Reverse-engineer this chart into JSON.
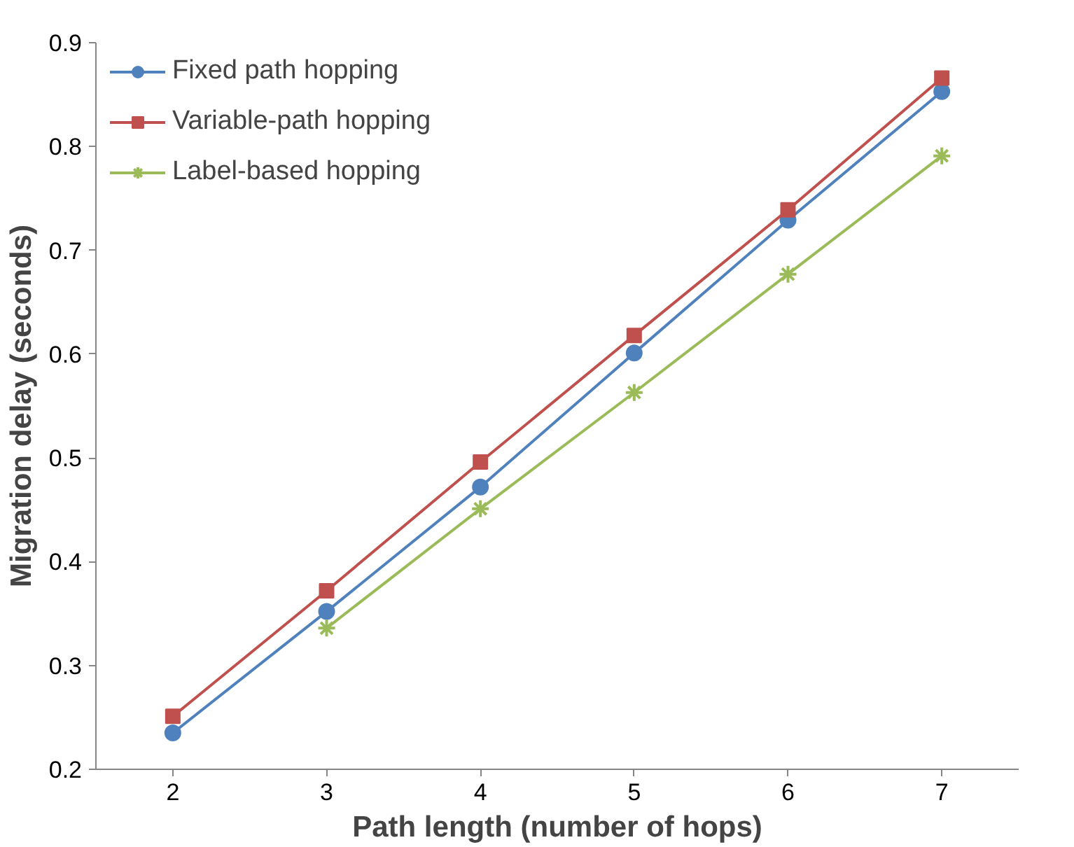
{
  "chart_data": {
    "type": "line",
    "xlabel": "Path length (number of hops)",
    "ylabel": "Migration delay (seconds)",
    "x": [
      2,
      3,
      4,
      5,
      6,
      7
    ],
    "xlim": [
      1.5,
      7.5
    ],
    "xticks": [
      2,
      3,
      4,
      5,
      6,
      7
    ],
    "ylim": [
      0.2,
      0.9
    ],
    "yticks": [
      {
        "value": 0.2,
        "label": "0.2"
      },
      {
        "value": 0.3,
        "label": "0.3"
      },
      {
        "value": 0.4,
        "label": "0.4"
      },
      {
        "value": 0.5,
        "label": "0.5"
      },
      {
        "value": 0.6,
        "label": "0.6"
      },
      {
        "value": 0.7,
        "label": "0.7"
      },
      {
        "value": 0.8,
        "label": "0.8"
      },
      {
        "value": 0.9,
        "label": "0.9"
      }
    ],
    "grid": false,
    "legend": "top left",
    "series": [
      {
        "name": "Fixed path hopping",
        "color": "#4f81bd",
        "marker": "circle",
        "values": [
          0.235,
          0.352,
          0.472,
          0.601,
          0.729,
          0.853
        ]
      },
      {
        "name": "Variable-path hopping",
        "color": "#c0504d",
        "marker": "square",
        "values": [
          0.251,
          0.372,
          0.496,
          0.618,
          0.739,
          0.866
        ]
      },
      {
        "name": "Label-based hopping",
        "color": "#9bbb59",
        "marker": "cross",
        "values": [
          null,
          0.336,
          0.451,
          0.563,
          0.677,
          0.791
        ]
      }
    ]
  }
}
